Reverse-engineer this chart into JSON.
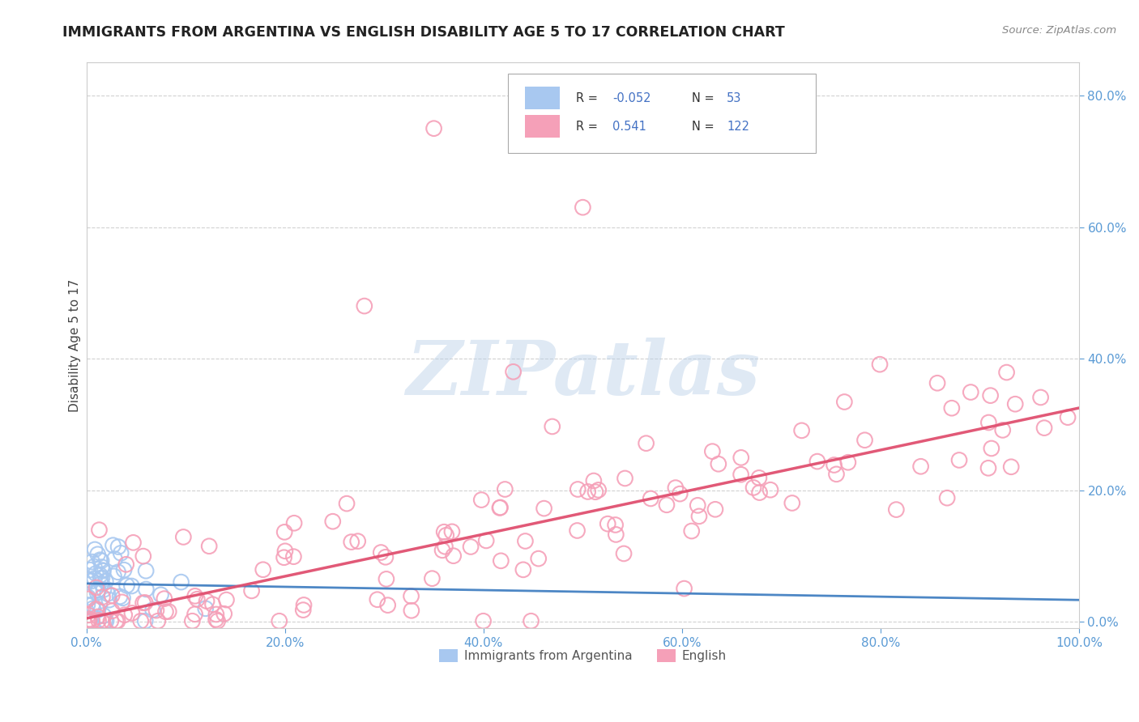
{
  "title": "IMMIGRANTS FROM ARGENTINA VS ENGLISH DISABILITY AGE 5 TO 17 CORRELATION CHART",
  "source": "Source: ZipAtlas.com",
  "xlabel_bottom": "Immigrants from Argentina",
  "ylabel": "Disability Age 5 to 17",
  "watermark": "ZIPatlas",
  "blue_color": "#a8c8f0",
  "pink_color": "#f5a0b8",
  "blue_line_color": "#3a7abf",
  "pink_line_color": "#e05070",
  "title_color": "#222222",
  "axis_label_color": "#5b9bd5",
  "ylabel_color": "#444444",
  "r_value_color": "#4472c4",
  "xlim": [
    0.0,
    1.0
  ],
  "ylim": [
    -0.01,
    0.85
  ],
  "blue_N": 53,
  "pink_N": 122,
  "blue_regression_intercept": 0.058,
  "blue_regression_slope": -0.025,
  "pink_regression_intercept": 0.005,
  "pink_regression_slope": 0.32
}
